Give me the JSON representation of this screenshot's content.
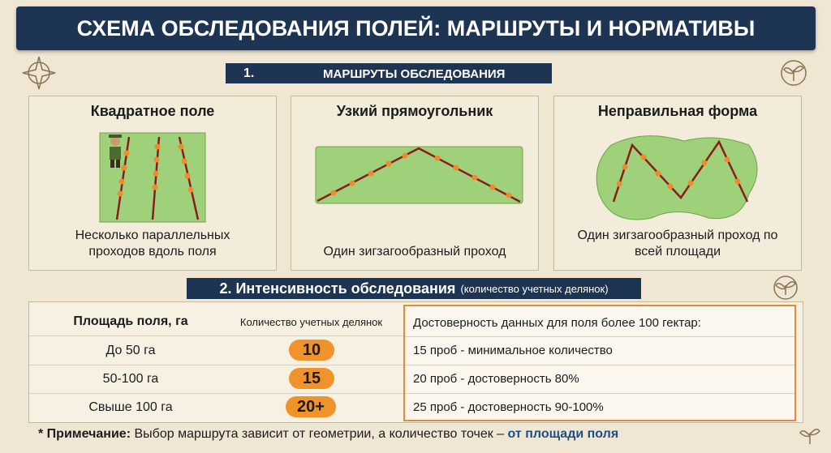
{
  "header": {
    "title": "СХЕМА ОБСЛЕДОВАНИЯ ПОЛЕЙ: МАРШРУТЫ И НОРМАТИВЫ"
  },
  "section1": {
    "number": "1.",
    "title": "МАРШРУТЫ ОБСЛЕДОВАНИЯ",
    "panels": [
      {
        "title": "Квадратное поле",
        "caption": "Несколько параллельных проходов вдоль поля"
      },
      {
        "title": "Узкий прямоугольник",
        "caption": "Один зигзагообразный проход"
      },
      {
        "title": "Неправильная форма",
        "caption": "Один зигзагообразный проход по всей площади"
      }
    ]
  },
  "section2": {
    "title": "2. Интенсивность обследования",
    "subtitle": "(количество учетных делянок)",
    "table": {
      "columns": [
        "Площадь поля, га",
        "Количество учетных делянок"
      ],
      "rows": [
        [
          "До 50 га",
          "10"
        ],
        [
          "50-100 га",
          "15"
        ],
        [
          "Свыше 100 га",
          "20+"
        ]
      ]
    },
    "reliability": {
      "title": "Достоверность данных для поля более 100 гектар:",
      "rows": [
        "15 проб - минимальное количество",
        "20 проб - достоверность 80%",
        "25 проб - достоверность 90-100%"
      ]
    }
  },
  "note": {
    "label": "* Примечание:",
    "text": "Выбор маршрута зависит от геометрии, а количество точек –",
    "highlight": "от площади поля"
  }
}
